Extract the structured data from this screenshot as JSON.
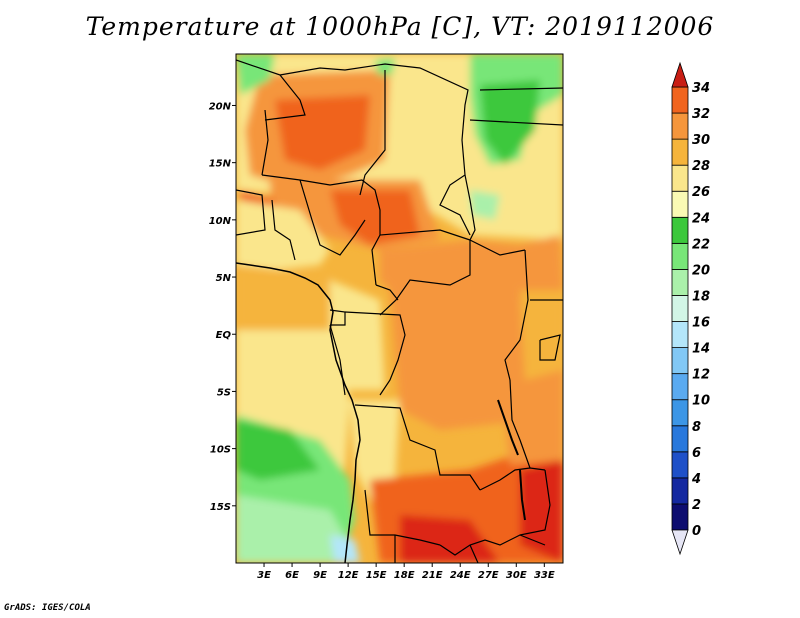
{
  "title": "Temperature at 1000hPa [C], VT: 2019112006",
  "credit": "GrADS: IGES/COLA",
  "map": {
    "lon_range": [
      0,
      35
    ],
    "lat_range": [
      -20,
      24.5
    ],
    "lat_ticks": [
      {
        "value": 20,
        "label": "20N"
      },
      {
        "value": 15,
        "label": "15N"
      },
      {
        "value": 10,
        "label": "10N"
      },
      {
        "value": 5,
        "label": "5N"
      },
      {
        "value": 0,
        "label": "EQ"
      },
      {
        "value": -5,
        "label": "5S"
      },
      {
        "value": -10,
        "label": "10S"
      },
      {
        "value": -15,
        "label": "15S"
      }
    ],
    "lon_ticks": [
      {
        "value": 3,
        "label": "3E"
      },
      {
        "value": 6,
        "label": "6E"
      },
      {
        "value": 9,
        "label": "9E"
      },
      {
        "value": 12,
        "label": "12E"
      },
      {
        "value": 15,
        "label": "15E"
      },
      {
        "value": 18,
        "label": "18E"
      },
      {
        "value": 21,
        "label": "21E"
      },
      {
        "value": 24,
        "label": "24E"
      },
      {
        "value": 27,
        "label": "27E"
      },
      {
        "value": 30,
        "label": "30E"
      },
      {
        "value": 33,
        "label": "33E"
      }
    ]
  },
  "colorbar": {
    "levels": [
      {
        "label": "0"
      },
      {
        "label": "2"
      },
      {
        "label": "4"
      },
      {
        "label": "6"
      },
      {
        "label": "8"
      },
      {
        "label": "10"
      },
      {
        "label": "12"
      },
      {
        "label": "14"
      },
      {
        "label": "16"
      },
      {
        "label": "18"
      },
      {
        "label": "20"
      },
      {
        "label": "22"
      },
      {
        "label": "24"
      },
      {
        "label": "26"
      },
      {
        "label": "28"
      },
      {
        "label": "30"
      },
      {
        "label": "32"
      },
      {
        "label": "34"
      }
    ],
    "colors": [
      "#0d0d70",
      "#1428a0",
      "#1e50c8",
      "#2878dc",
      "#3c96e6",
      "#5aaaf0",
      "#82c8f5",
      "#b4e6fa",
      "#d2f5e6",
      "#aaf0aa",
      "#78e678",
      "#3cc83c",
      "#fafab4",
      "#fae68c",
      "#f5b43c",
      "#f5963c",
      "#f0641e",
      "#dc2814"
    ],
    "under_color": "#e6e6f5",
    "over_color": "#c81e14"
  }
}
